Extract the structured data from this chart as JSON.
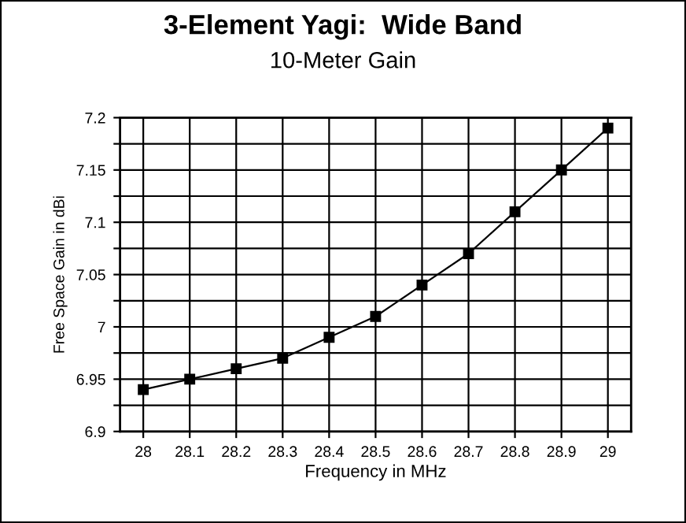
{
  "chart_data": {
    "type": "line",
    "title": "3-Element Yagi:  Wide Band",
    "subtitle": "10-Meter Gain",
    "xlabel": "Frequency in MHz",
    "ylabel": "Free Space Gain in dBi",
    "x": [
      28,
      28.1,
      28.2,
      28.3,
      28.4,
      28.5,
      28.6,
      28.7,
      28.8,
      28.9,
      29
    ],
    "series": [
      {
        "color": "#000000",
        "values": [
          6.94,
          6.95,
          6.96,
          6.97,
          6.99,
          7.01,
          7.04,
          7.07,
          7.11,
          7.15,
          7.19
        ]
      }
    ],
    "xlim": [
      27.95,
      29.05
    ],
    "xticks": [
      28,
      28.1,
      28.2,
      28.3,
      28.4,
      28.5,
      28.6,
      28.7,
      28.8,
      28.9,
      29
    ],
    "ylim": [
      6.9,
      7.2
    ],
    "yticks": [
      6.9,
      {
        "value": 6.925,
        "label": null
      },
      6.95,
      {
        "value": 6.975,
        "label": null
      },
      7,
      {
        "value": 7.025,
        "label": null
      },
      7.05,
      {
        "value": 7.075,
        "label": null
      },
      7.1,
      {
        "value": 7.125,
        "label": null
      },
      7.15,
      {
        "value": 7.175,
        "label": null
      },
      7.2
    ],
    "grid": true,
    "marker": "square",
    "line_style": "solid"
  }
}
